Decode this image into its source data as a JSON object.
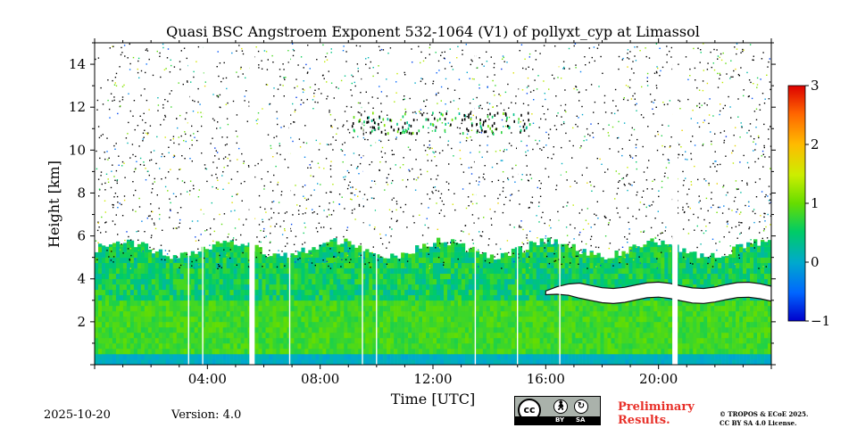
{
  "chart_data": {
    "type": "heatmap",
    "title": "Quasi BSC Angstroem Exponent 532-1064 (V1) of pollyxt_cyp at Limassol",
    "xlabel": "Time [UTC]",
    "ylabel": "Height [km]",
    "x_range": [
      "00:00",
      "24:00"
    ],
    "ylim": [
      0,
      15
    ],
    "x_ticks": [
      "04:00",
      "08:00",
      "12:00",
      "16:00",
      "20:00"
    ],
    "y_ticks": [
      2,
      4,
      6,
      8,
      10,
      12,
      14
    ],
    "colorbar": {
      "range": [
        -1,
        3
      ],
      "ticks": [
        3,
        2,
        1,
        0,
        -1
      ],
      "tick_labels": [
        "3",
        "2",
        "1",
        "0",
        "−1"
      ],
      "colormap": "jet"
    },
    "data_gaps_utc": [
      "03:20",
      "03:50",
      "05:35",
      "06:55",
      "09:30",
      "10:00",
      "13:30",
      "15:00",
      "16:30",
      "20:35"
    ],
    "features": [
      {
        "type": "aerosol layer",
        "height_km": [
          0,
          5.5
        ],
        "values": "0.5 to 1"
      },
      {
        "type": "cloud band",
        "time_utc": [
          "16:00",
          "24:00"
        ],
        "height_km": [
          3.0,
          3.7
        ]
      },
      {
        "type": "cirrus traces",
        "time_utc": [
          "09:00",
          "15:30"
        ],
        "height_km": [
          10.8,
          11.8
        ]
      }
    ]
  },
  "footer": {
    "date": "2025-10-20",
    "version": "Version: 4.0",
    "license_badge": {
      "cc": "cc",
      "by": "BY",
      "sa": "SA"
    },
    "preliminary_line1": "Preliminary",
    "preliminary_line2": "Results.",
    "license_line1": "© TROPOS & ECoE 2025.",
    "license_line2": "CC BY SA 4.0 License."
  },
  "colors": {
    "background": "#ffffff",
    "preliminary": "#e8312a",
    "badge": "#aab2ab"
  }
}
